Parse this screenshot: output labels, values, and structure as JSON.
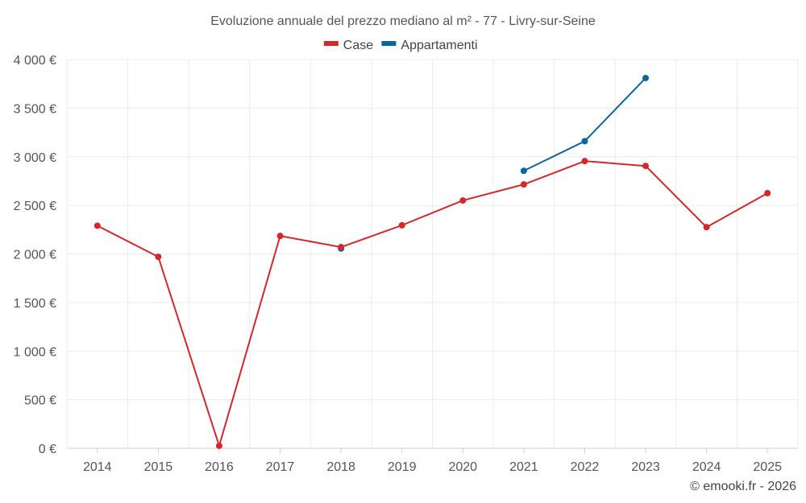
{
  "chart_data": {
    "type": "line",
    "title": "Evoluzione annuale del prezzo mediano al m² - 77 - Livry-sur-Seine",
    "categories": [
      "2014",
      "2015",
      "2016",
      "2017",
      "2018",
      "2019",
      "2020",
      "2021",
      "2022",
      "2023",
      "2024",
      "2025"
    ],
    "ylim": [
      0,
      4000
    ],
    "yticks": [
      0,
      500,
      1000,
      1500,
      2000,
      2500,
      3000,
      3500,
      4000
    ],
    "ytick_labels": [
      "0 €",
      "500 €",
      "1 000 €",
      "1 500 €",
      "2 000 €",
      "2 500 €",
      "3 000 €",
      "3 500 €",
      "4 000 €"
    ],
    "xlabel": "",
    "ylabel": "",
    "grid": true,
    "legend_position": "top-center",
    "series": [
      {
        "name": "Case",
        "color": "#d62728",
        "values": [
          2290,
          1970,
          25,
          2185,
          2070,
          2295,
          2550,
          2715,
          2955,
          2905,
          2275,
          2625
        ]
      },
      {
        "name": "Appartamenti",
        "color": "#0b66a0",
        "values": [
          null,
          null,
          null,
          null,
          2055,
          null,
          null,
          2855,
          3160,
          3810,
          null,
          null
        ]
      }
    ],
    "credit": "© emooki.fr - 2026"
  }
}
